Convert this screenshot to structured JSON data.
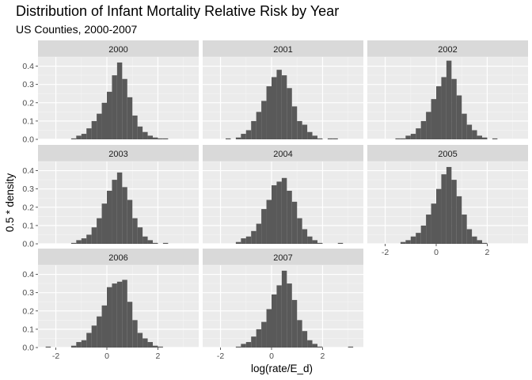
{
  "title": "Distribution of Infant Mortality Relative Risk by Year",
  "subtitle": "US Counties, 2000-2007",
  "chart_data": {
    "type": "histogram",
    "facet_by": "year",
    "facet_layout": {
      "ncol": 3,
      "nrow": 3
    },
    "title": "Distribution of Infant Mortality Relative Risk by Year",
    "subtitle": "US Counties, 2000-2007",
    "xlabel": "log(rate/E_d)",
    "ylabel": "0.5 * density",
    "xlim": [
      -2.7,
      3.6
    ],
    "ylim": [
      0,
      0.45
    ],
    "x_ticks": [
      -2,
      0,
      2
    ],
    "y_ticks": [
      0.0,
      0.1,
      0.2,
      0.3,
      0.4
    ],
    "y_tick_labels": [
      "0.0",
      "0.1",
      "0.2",
      "0.3",
      "0.4"
    ],
    "grid": true,
    "bar_color": "#595959",
    "panel_background": "#ebebeb",
    "strip_background": "#d9d9d9",
    "bin_start": -2.6,
    "bin_width": 0.2,
    "facets": [
      {
        "label": "2000",
        "densities": [
          0,
          0,
          0,
          0,
          0,
          0,
          0.005,
          0.02,
          0.03,
          0.06,
          0.1,
          0.14,
          0.2,
          0.26,
          0.35,
          0.42,
          0.33,
          0.23,
          0.13,
          0.07,
          0.04,
          0.02,
          0.01,
          0.005,
          0.005,
          0,
          0,
          0,
          0,
          0,
          0
        ]
      },
      {
        "label": "2001",
        "densities": [
          0,
          0,
          0,
          0,
          0.005,
          0,
          0.01,
          0.03,
          0.05,
          0.1,
          0.15,
          0.21,
          0.29,
          0.34,
          0.38,
          0.35,
          0.28,
          0.18,
          0.1,
          0.08,
          0.04,
          0.02,
          0.005,
          0,
          0.005,
          0.005,
          0,
          0,
          0,
          0,
          0
        ]
      },
      {
        "label": "2002",
        "densities": [
          0,
          0,
          0,
          0,
          0,
          0.005,
          0.005,
          0.02,
          0.03,
          0.06,
          0.1,
          0.15,
          0.22,
          0.29,
          0.34,
          0.43,
          0.33,
          0.24,
          0.14,
          0.08,
          0.05,
          0.02,
          0.01,
          0,
          0.005,
          0,
          0,
          0,
          0,
          0,
          0
        ]
      },
      {
        "label": "2003",
        "densities": [
          0,
          0,
          0,
          0,
          0,
          0,
          0.005,
          0.02,
          0.03,
          0.05,
          0.09,
          0.14,
          0.22,
          0.29,
          0.35,
          0.39,
          0.31,
          0.24,
          0.14,
          0.09,
          0.04,
          0.02,
          0.005,
          0,
          0.005,
          0,
          0,
          0,
          0,
          0,
          0
        ]
      },
      {
        "label": "2004",
        "densities": [
          0,
          0,
          0,
          0,
          0,
          0,
          0.01,
          0.03,
          0.04,
          0.07,
          0.11,
          0.19,
          0.24,
          0.32,
          0.34,
          0.36,
          0.29,
          0.23,
          0.14,
          0.08,
          0.04,
          0.02,
          0.005,
          0,
          0,
          0,
          0.005,
          0,
          0,
          0,
          0
        ]
      },
      {
        "label": "2005",
        "densities": [
          0,
          0,
          0,
          0,
          0,
          0,
          0.01,
          0.02,
          0.04,
          0.06,
          0.1,
          0.16,
          0.22,
          0.3,
          0.38,
          0.42,
          0.35,
          0.26,
          0.16,
          0.08,
          0.04,
          0.02,
          0.005,
          0,
          0,
          0,
          0,
          0,
          0,
          0,
          0
        ]
      },
      {
        "label": "2006",
        "densities": [
          0,
          0.005,
          0,
          0,
          0,
          0,
          0.01,
          0.03,
          0.04,
          0.08,
          0.12,
          0.17,
          0.23,
          0.33,
          0.35,
          0.36,
          0.37,
          0.25,
          0.15,
          0.08,
          0.05,
          0.03,
          0.01,
          0.005,
          0,
          0,
          0,
          0,
          0,
          0,
          0
        ]
      },
      {
        "label": "2007",
        "densities": [
          0,
          0,
          0,
          0,
          0,
          0,
          0.005,
          0.02,
          0.03,
          0.06,
          0.1,
          0.14,
          0.21,
          0.29,
          0.34,
          0.42,
          0.35,
          0.26,
          0.15,
          0.09,
          0.04,
          0.02,
          0.005,
          0,
          0,
          0,
          0,
          0,
          0.005,
          0,
          0
        ]
      }
    ]
  }
}
